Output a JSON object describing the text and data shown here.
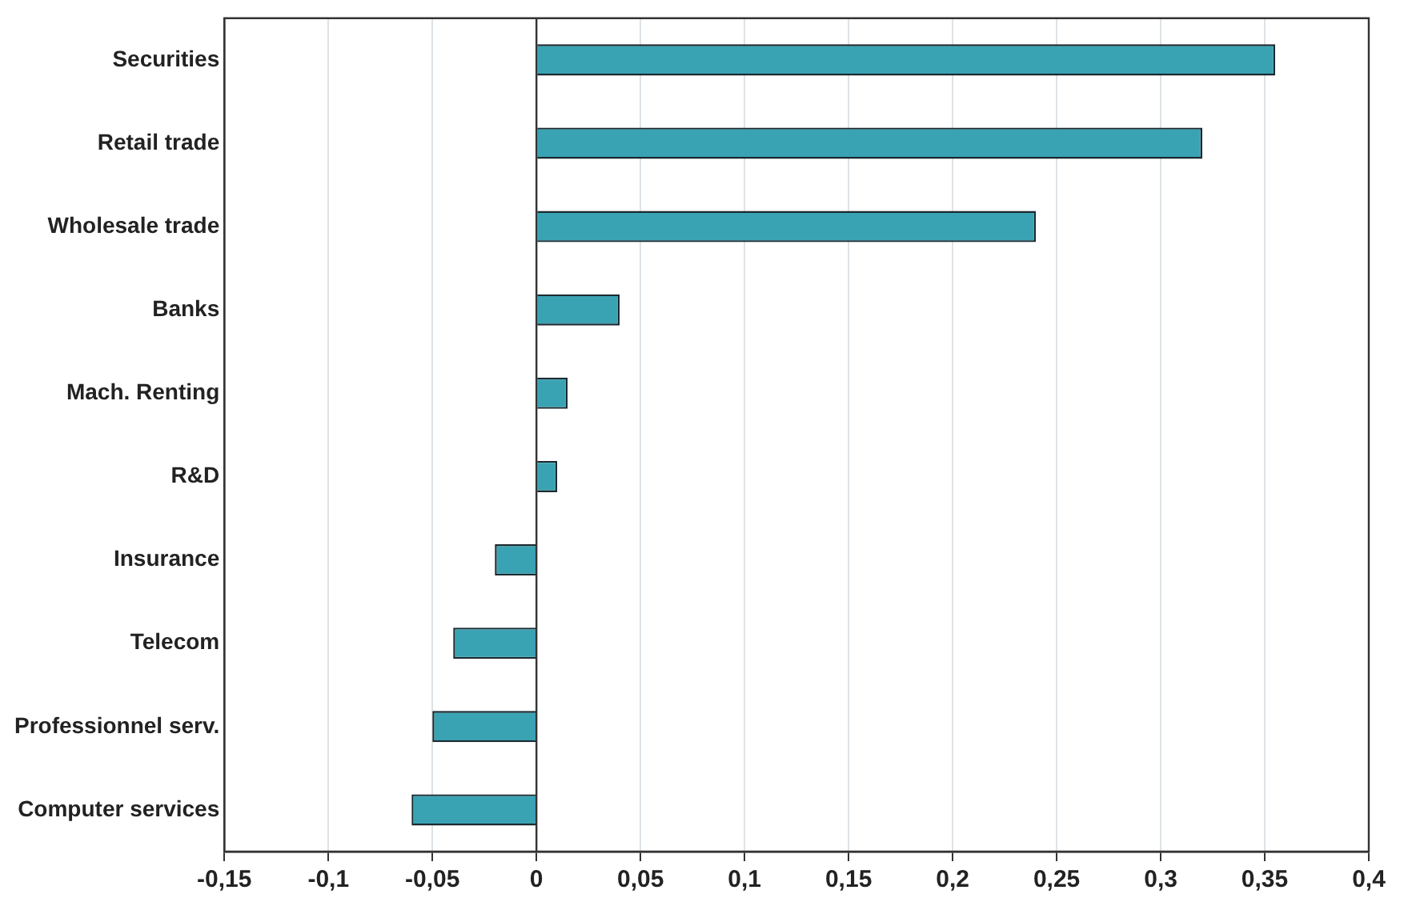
{
  "chart_data": {
    "type": "bar",
    "orientation": "horizontal",
    "categories": [
      "Securities",
      "Retail trade",
      "Wholesale trade",
      "Banks",
      "Mach. Renting",
      "R&D",
      "Insurance",
      "Telecom",
      "Professionnel serv.",
      "Computer services"
    ],
    "values": [
      0.355,
      0.32,
      0.24,
      0.04,
      0.015,
      0.01,
      -0.02,
      -0.04,
      -0.05,
      -0.06
    ],
    "color": "#3aa3b3",
    "xlim": [
      -0.15,
      0.4
    ],
    "xticks": [
      {
        "value": -0.15,
        "label": "-0,15"
      },
      {
        "value": -0.1,
        "label": "-0,1"
      },
      {
        "value": -0.05,
        "label": "-0,05"
      },
      {
        "value": 0,
        "label": "0"
      },
      {
        "value": 0.05,
        "label": "0,05"
      },
      {
        "value": 0.1,
        "label": "0,1"
      },
      {
        "value": 0.15,
        "label": "0,15"
      },
      {
        "value": 0.2,
        "label": "0,2"
      },
      {
        "value": 0.25,
        "label": "0,25"
      },
      {
        "value": 0.3,
        "label": "0,3"
      },
      {
        "value": 0.35,
        "label": "0,35"
      },
      {
        "value": 0.4,
        "label": "0,4"
      }
    ],
    "grid": "x",
    "legend": false
  }
}
